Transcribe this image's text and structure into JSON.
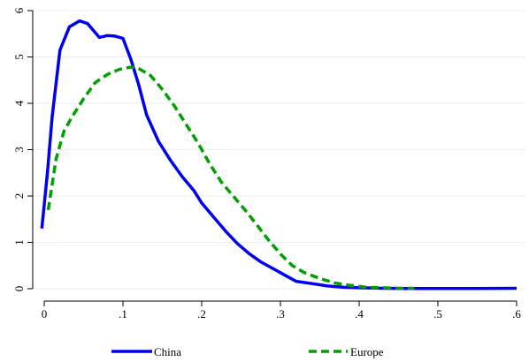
{
  "chart_data": {
    "type": "line",
    "title": "",
    "xlabel": "",
    "ylabel": "",
    "xlim": [
      0,
      0.6
    ],
    "ylim": [
      0,
      6
    ],
    "x_ticks": [
      0,
      0.1,
      0.2,
      0.3,
      0.4,
      0.5,
      0.6
    ],
    "x_tick_labels": [
      "0",
      ".1",
      ".2",
      ".3",
      ".4",
      ".5",
      ".6"
    ],
    "y_ticks": [
      0,
      1,
      2,
      3,
      4,
      5,
      6
    ],
    "y_tick_labels": [
      "0",
      "1",
      "2",
      "3",
      "4",
      "5",
      "6"
    ],
    "grid": "horizontal",
    "legend_position": "bottom",
    "series": [
      {
        "name": "China",
        "color": "#0000ee",
        "dash": "solid",
        "x": [
          -0.003,
          0.004,
          0.01,
          0.02,
          0.032,
          0.045,
          0.055,
          0.07,
          0.08,
          0.09,
          0.1,
          0.11,
          0.12,
          0.13,
          0.145,
          0.16,
          0.175,
          0.19,
          0.2,
          0.215,
          0.23,
          0.245,
          0.26,
          0.275,
          0.29,
          0.305,
          0.32,
          0.34,
          0.36,
          0.38,
          0.4,
          0.43,
          0.46,
          0.5,
          0.55,
          0.6
        ],
        "y": [
          1.3,
          2.5,
          3.7,
          5.15,
          5.65,
          5.78,
          5.72,
          5.42,
          5.46,
          5.45,
          5.4,
          4.95,
          4.4,
          3.75,
          3.18,
          2.78,
          2.42,
          2.12,
          1.85,
          1.55,
          1.25,
          0.98,
          0.76,
          0.58,
          0.44,
          0.3,
          0.16,
          0.11,
          0.06,
          0.03,
          0.02,
          0.01,
          0.005,
          0.005,
          0.005,
          0.01
        ]
      },
      {
        "name": "Europe",
        "color": "#00a000",
        "dash": "dashed",
        "x": [
          0.005,
          0.015,
          0.025,
          0.035,
          0.05,
          0.065,
          0.08,
          0.095,
          0.11,
          0.12,
          0.135,
          0.15,
          0.165,
          0.18,
          0.195,
          0.21,
          0.225,
          0.24,
          0.255,
          0.27,
          0.285,
          0.3,
          0.315,
          0.33,
          0.35,
          0.37,
          0.39,
          0.41,
          0.43,
          0.45,
          0.47
        ],
        "y": [
          1.7,
          2.8,
          3.4,
          3.7,
          4.1,
          4.45,
          4.62,
          4.73,
          4.78,
          4.75,
          4.6,
          4.3,
          3.95,
          3.55,
          3.15,
          2.7,
          2.3,
          2.0,
          1.7,
          1.38,
          1.05,
          0.75,
          0.5,
          0.35,
          0.22,
          0.12,
          0.07,
          0.03,
          0.02,
          0.01,
          0.01
        ]
      }
    ]
  }
}
